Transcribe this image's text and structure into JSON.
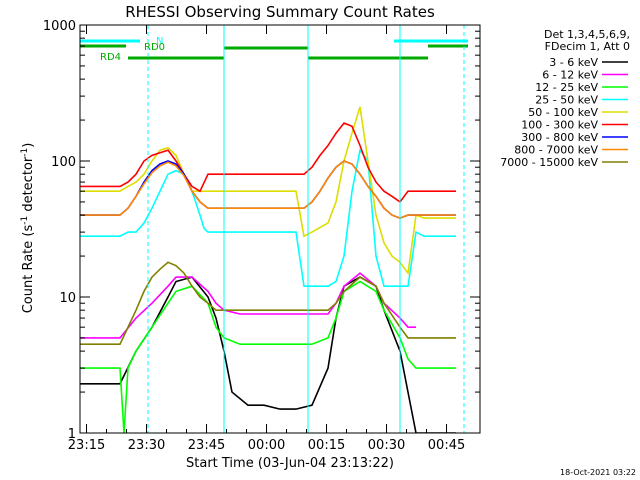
{
  "chart_data": {
    "type": "line",
    "title": "RHESSI Observing Summary Count Rates",
    "xlabel": "Start Time (03-Jun-04 23:13:22)",
    "ylabel": "Count Rate (s",
    "ylabel_sup1": "-1",
    "ylabel_mid": " detector",
    "ylabel_sup2": "-1",
    "ylabel_end": ")",
    "x_ticks": [
      {
        "t": 1.63,
        "label": "23:15"
      },
      {
        "t": 16.63,
        "label": "23:30"
      },
      {
        "t": 31.63,
        "label": "23:45"
      },
      {
        "t": 46.63,
        "label": "00:00"
      },
      {
        "t": 61.63,
        "label": "00:15"
      },
      {
        "t": 76.63,
        "label": "00:30"
      },
      {
        "t": 91.63,
        "label": "00:45"
      }
    ],
    "xlim": [
      0,
      100
    ],
    "y_ticks": [
      {
        "v": 1,
        "label": "1"
      },
      {
        "v": 10,
        "label": "10"
      },
      {
        "v": 100,
        "label": "100"
      },
      {
        "v": 1000,
        "label": "1000"
      }
    ],
    "ylim": [
      1,
      1000
    ],
    "yscale": "log",
    "legend_header": [
      "Det 1,3,4,5,6,9,",
      "FDecim 1, Att 0"
    ],
    "legend_position": "right",
    "series": [
      {
        "name": "3 - 6 keV",
        "color": "#000000",
        "x": [
          0,
          10,
          14,
          18,
          22,
          24,
          28,
          32,
          34,
          36,
          38,
          42,
          46,
          50,
          54,
          58,
          62,
          64,
          66,
          70,
          74,
          76,
          80,
          82,
          84,
          86,
          88,
          90,
          92,
          94
        ],
        "values": [
          2.3,
          2.3,
          4,
          6,
          10,
          13,
          14,
          10,
          7,
          4,
          2,
          1.6,
          1.6,
          1.5,
          1.5,
          1.6,
          3,
          7,
          12,
          14,
          12,
          8,
          4,
          2,
          1,
          1,
          1,
          1,
          1,
          1
        ]
      },
      {
        "name": "6 - 12 keV",
        "color": "#ff00ff",
        "x": [
          0,
          10,
          14,
          18,
          22,
          24,
          28,
          32,
          34,
          36,
          40,
          46,
          50,
          54,
          58,
          62,
          64,
          66,
          70,
          74,
          76,
          80,
          82,
          84
        ],
        "values": [
          5,
          5,
          7,
          9,
          12,
          14,
          14,
          11,
          9,
          8,
          7.5,
          7.5,
          7.5,
          7.5,
          7.5,
          7.5,
          9,
          12,
          15,
          12,
          9,
          7,
          6,
          6
        ]
      },
      {
        "name": "12 - 25 keV",
        "color": "#00ff00",
        "x": [
          0,
          10,
          11,
          12,
          14,
          18,
          22,
          24,
          28,
          32,
          34,
          36,
          40,
          46,
          50,
          54,
          58,
          62,
          64,
          66,
          70,
          74,
          76,
          80,
          82,
          84,
          86,
          90,
          94
        ],
        "values": [
          3,
          3,
          1,
          3,
          4,
          6,
          9,
          11,
          12,
          9,
          6,
          5,
          4.5,
          4.5,
          4.5,
          4.5,
          4.5,
          5,
          7,
          11,
          13,
          11,
          8,
          5,
          3.5,
          3,
          3,
          3,
          3
        ]
      },
      {
        "name": "25 - 50 keV",
        "color": "#00ffff",
        "x": [
          0,
          10,
          12,
          14,
          16,
          18,
          20,
          22,
          24,
          26,
          28,
          30,
          31,
          32,
          34,
          36,
          40,
          46,
          50,
          54,
          56,
          58,
          62,
          64,
          66,
          68,
          70,
          72,
          74,
          76,
          78,
          80,
          82,
          84,
          86,
          90,
          94
        ],
        "values": [
          28,
          28,
          30,
          30,
          35,
          45,
          60,
          80,
          85,
          80,
          60,
          40,
          32,
          30,
          30,
          30,
          30,
          30,
          30,
          30,
          12,
          12,
          12,
          13,
          20,
          60,
          120,
          100,
          20,
          12,
          12,
          12,
          12,
          30,
          28,
          28,
          28
        ]
      },
      {
        "name": "50 - 100 keV",
        "color": "#dddd00",
        "x": [
          0,
          10,
          12,
          14,
          16,
          18,
          20,
          22,
          24,
          26,
          28,
          30,
          32,
          34,
          36,
          40,
          46,
          50,
          54,
          56,
          58,
          62,
          64,
          66,
          68,
          70,
          72,
          74,
          76,
          78,
          80,
          82,
          84,
          86,
          90,
          94
        ],
        "values": [
          60,
          60,
          65,
          70,
          80,
          100,
          120,
          125,
          110,
          80,
          60,
          60,
          60,
          60,
          60,
          60,
          60,
          60,
          60,
          28,
          30,
          35,
          50,
          100,
          160,
          250,
          100,
          40,
          25,
          20,
          18,
          15,
          40,
          38,
          38,
          38
        ]
      },
      {
        "name": "100 - 300 keV",
        "color": "#ff0000",
        "x": [
          0,
          10,
          12,
          14,
          16,
          18,
          20,
          22,
          24,
          26,
          28,
          30,
          32,
          34,
          36,
          40,
          46,
          50,
          54,
          56,
          58,
          60,
          62,
          64,
          66,
          68,
          70,
          72,
          74,
          76,
          78,
          80,
          82,
          84,
          86,
          90,
          94
        ],
        "values": [
          65,
          65,
          70,
          80,
          100,
          110,
          115,
          120,
          100,
          80,
          65,
          60,
          80,
          80,
          80,
          80,
          80,
          80,
          80,
          80,
          90,
          110,
          130,
          160,
          190,
          180,
          130,
          90,
          70,
          60,
          55,
          50,
          60,
          60,
          60,
          60,
          60
        ]
      },
      {
        "name": "300 - 800 keV",
        "color": "#0000ff",
        "x": [
          0,
          10,
          12,
          14,
          16,
          18,
          20,
          22,
          24,
          26,
          28,
          30,
          32,
          34,
          36,
          40,
          46,
          50,
          54,
          56,
          58,
          60,
          62,
          64,
          66,
          68,
          70,
          72,
          74,
          76,
          78,
          80,
          82,
          84,
          86,
          90,
          94
        ],
        "values": [
          40,
          40,
          45,
          55,
          70,
          85,
          95,
          100,
          95,
          80,
          60,
          50,
          45,
          45,
          45,
          45,
          45,
          45,
          45,
          45,
          50,
          60,
          75,
          90,
          100,
          95,
          80,
          65,
          55,
          45,
          40,
          38,
          40,
          40,
          40,
          40,
          40
        ]
      },
      {
        "name": "800 - 7000 keV",
        "color": "#ff8800",
        "x": [
          0,
          10,
          12,
          14,
          16,
          18,
          20,
          22,
          24,
          26,
          28,
          30,
          32,
          34,
          36,
          40,
          46,
          50,
          54,
          56,
          58,
          60,
          62,
          64,
          66,
          68,
          70,
          72,
          74,
          76,
          78,
          80,
          82,
          84,
          86,
          90,
          94
        ],
        "values": [
          40,
          40,
          45,
          55,
          68,
          82,
          92,
          98,
          92,
          78,
          60,
          50,
          45,
          45,
          45,
          45,
          45,
          45,
          45,
          45,
          50,
          60,
          75,
          90,
          100,
          95,
          80,
          65,
          55,
          45,
          40,
          38,
          40,
          40,
          40,
          40,
          40
        ]
      },
      {
        "name": "7000 - 15000 keV",
        "color": "#808000",
        "x": [
          0,
          10,
          12,
          14,
          16,
          18,
          20,
          22,
          24,
          26,
          28,
          30,
          32,
          34,
          36,
          40,
          46,
          50,
          54,
          58,
          62,
          64,
          66,
          70,
          74,
          76,
          80,
          82,
          84,
          86,
          90,
          94
        ],
        "values": [
          4.5,
          4.5,
          6,
          8,
          11,
          14,
          16,
          18,
          17,
          15,
          12,
          10,
          9,
          8,
          8,
          8,
          8,
          8,
          8,
          8,
          8,
          9,
          11,
          14,
          12,
          9,
          6,
          5,
          5,
          5,
          5,
          5
        ]
      }
    ],
    "attenuator_states": [
      {
        "label": "N",
        "color": "#00ffff"
      },
      {
        "label": "RD0",
        "color": "#00aa00"
      },
      {
        "label": "RD4",
        "color": "#00aa00"
      }
    ],
    "footnote": "18-Oct-2021 03:22"
  }
}
